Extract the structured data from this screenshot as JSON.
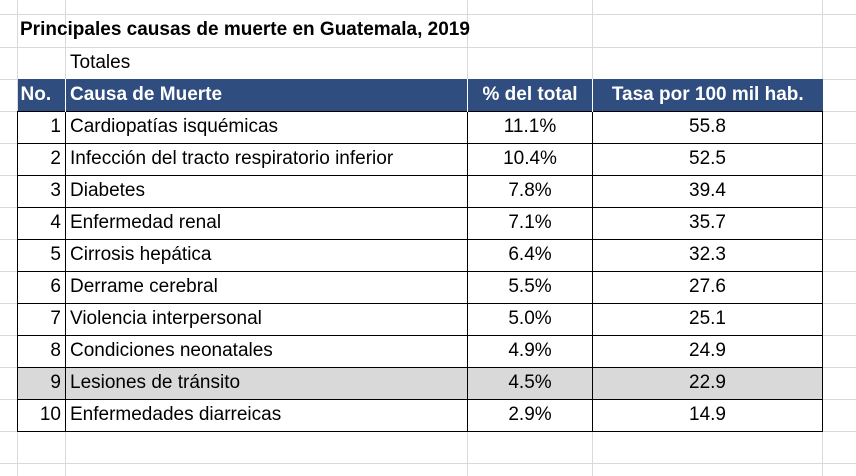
{
  "title": "Principales causas de muerte en Guatemala, 2019",
  "subtitle": "Totales",
  "table": {
    "headers": [
      "No.",
      "Causa de Muerte",
      "% del total",
      "Tasa por 100 mil hab."
    ],
    "rows": [
      {
        "no": "1",
        "cause": "Cardiopatías isquémicas",
        "pct": "11.1%",
        "rate": "55.8"
      },
      {
        "no": "2",
        "cause": "Infección del tracto respiratorio inferior",
        "pct": "10.4%",
        "rate": "52.5"
      },
      {
        "no": "3",
        "cause": "Diabetes",
        "pct": "7.8%",
        "rate": "39.4"
      },
      {
        "no": "4",
        "cause": "Enfermedad renal",
        "pct": "7.1%",
        "rate": "35.7"
      },
      {
        "no": "5",
        "cause": "Cirrosis hepática",
        "pct": "6.4%",
        "rate": "32.3"
      },
      {
        "no": "6",
        "cause": "Derrame cerebral",
        "pct": "5.5%",
        "rate": "27.6"
      },
      {
        "no": "7",
        "cause": "Violencia interpersonal",
        "pct": "5.0%",
        "rate": "25.1"
      },
      {
        "no": "8",
        "cause": "Condiciones neonatales",
        "pct": "4.9%",
        "rate": "24.9"
      },
      {
        "no": "9",
        "cause": "Lesiones de tránsito",
        "pct": "4.5%",
        "rate": "22.9"
      },
      {
        "no": "10",
        "cause": "Enfermedades diarreicas",
        "pct": "2.9%",
        "rate": "14.9"
      }
    ]
  },
  "colors": {
    "header_bg": "#2f4d7e",
    "header_text": "#ffffff",
    "highlight_row": "#d9d9d9",
    "gridline": "#d9d9d9"
  }
}
